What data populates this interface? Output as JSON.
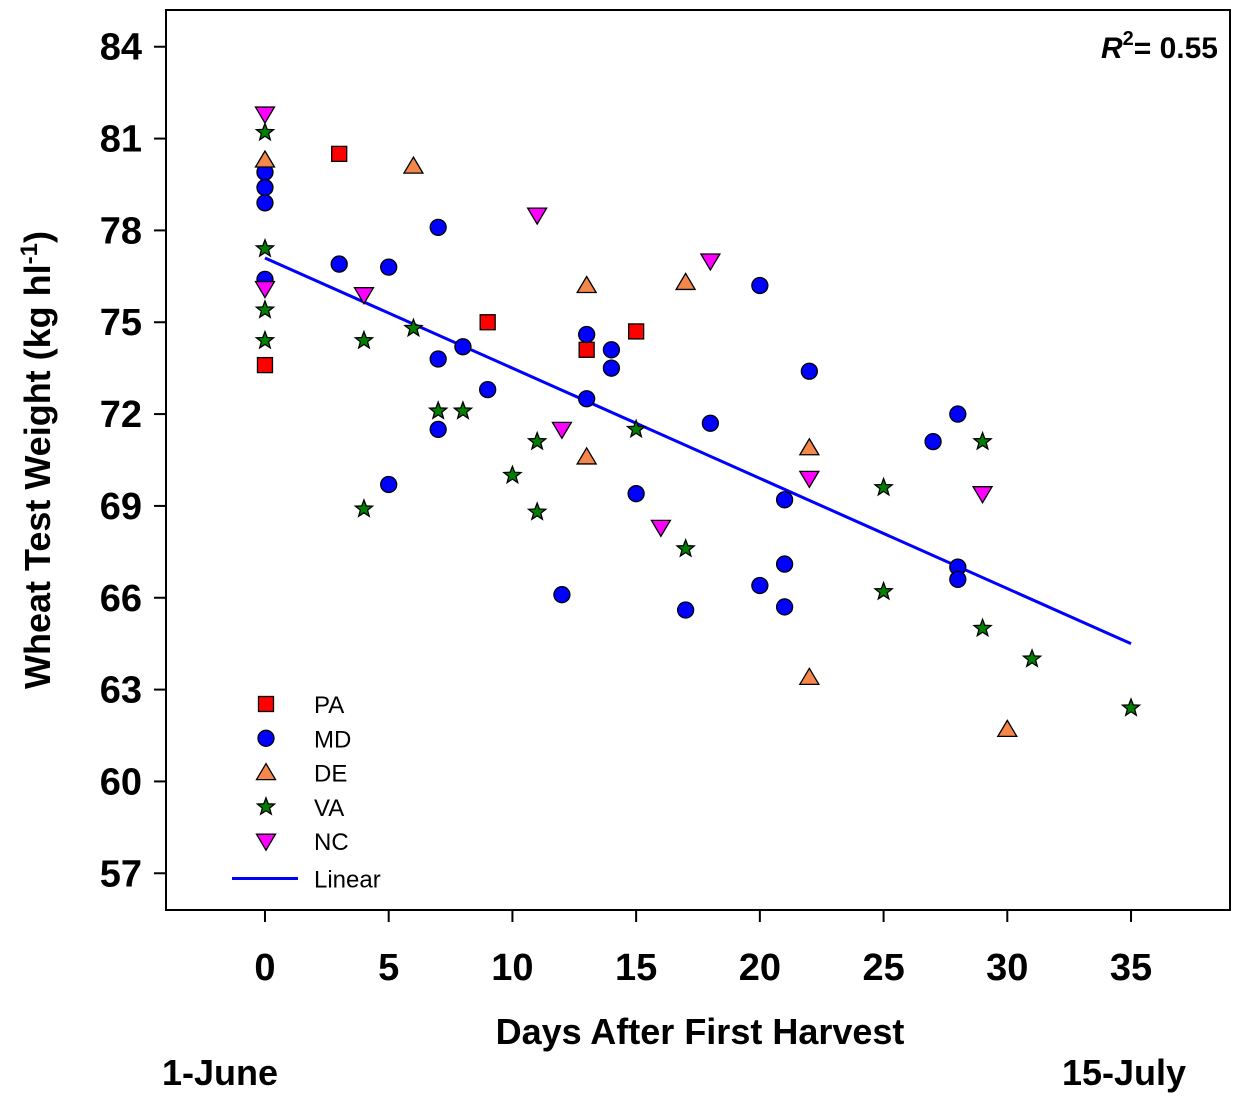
{
  "chart_data": {
    "type": "scatter",
    "xlabel": "Days After First Harvest",
    "ylabel_main": "Wheat Test Weight (kg hl",
    "ylabel_sup": "-1",
    "ylabel_end": ")",
    "xlim": [
      -4,
      39
    ],
    "ylim": [
      55.8,
      85.2
    ],
    "x_ticks": [
      0,
      5,
      10,
      15,
      20,
      25,
      30,
      35
    ],
    "y_ticks": [
      57,
      60,
      63,
      66,
      69,
      72,
      75,
      78,
      81,
      84
    ],
    "date_start": "1-June",
    "date_end": "15-July",
    "r2": {
      "label": "R",
      "sup": "2",
      "value": "= 0.55"
    },
    "legend_placement": "bottom-left",
    "series": [
      {
        "name": "PA",
        "marker": "square",
        "color": "#ff0000",
        "points": [
          [
            0,
            73.6
          ],
          [
            3,
            80.5
          ],
          [
            9,
            75.0
          ],
          [
            13,
            74.1
          ],
          [
            15,
            74.7
          ]
        ]
      },
      {
        "name": "MD",
        "marker": "circle",
        "color": "#0000ff",
        "points": [
          [
            0,
            79.9
          ],
          [
            0,
            79.4
          ],
          [
            0,
            78.9
          ],
          [
            0,
            76.4
          ],
          [
            3,
            76.9
          ],
          [
            5,
            76.8
          ],
          [
            5,
            69.7
          ],
          [
            7,
            78.1
          ],
          [
            7,
            73.8
          ],
          [
            7,
            71.5
          ],
          [
            8,
            74.2
          ],
          [
            9,
            72.8
          ],
          [
            12,
            66.1
          ],
          [
            13,
            74.6
          ],
          [
            13,
            72.5
          ],
          [
            14,
            74.1
          ],
          [
            14,
            73.5
          ],
          [
            15,
            69.4
          ],
          [
            17,
            65.6
          ],
          [
            18,
            71.7
          ],
          [
            20,
            76.2
          ],
          [
            20,
            66.4
          ],
          [
            21,
            69.2
          ],
          [
            21,
            67.1
          ],
          [
            21,
            65.7
          ],
          [
            22,
            73.4
          ],
          [
            27,
            71.1
          ],
          [
            28,
            72.0
          ],
          [
            28,
            67.0
          ],
          [
            28,
            66.6
          ]
        ]
      },
      {
        "name": "DE",
        "marker": "triangle-up",
        "color": "#f4874b",
        "points": [
          [
            0,
            80.3
          ],
          [
            6,
            80.1
          ],
          [
            13,
            76.2
          ],
          [
            13,
            70.6
          ],
          [
            17,
            76.3
          ],
          [
            22,
            70.9
          ],
          [
            22,
            63.4
          ],
          [
            30,
            61.7
          ]
        ]
      },
      {
        "name": "VA",
        "marker": "star",
        "color": "#008000",
        "points": [
          [
            0,
            81.2
          ],
          [
            0,
            77.4
          ],
          [
            0,
            75.4
          ],
          [
            0,
            74.4
          ],
          [
            4,
            74.4
          ],
          [
            4,
            68.9
          ],
          [
            6,
            74.8
          ],
          [
            7,
            72.1
          ],
          [
            8,
            72.1
          ],
          [
            10,
            70.0
          ],
          [
            11,
            71.1
          ],
          [
            11,
            68.8
          ],
          [
            15,
            71.5
          ],
          [
            17,
            67.6
          ],
          [
            25,
            69.6
          ],
          [
            25,
            66.2
          ],
          [
            29,
            71.1
          ],
          [
            29,
            65.0
          ],
          [
            31,
            64.0
          ],
          [
            35,
            62.4
          ]
        ]
      },
      {
        "name": "NC",
        "marker": "triangle-down",
        "color": "#ff00ff",
        "points": [
          [
            0,
            81.8
          ],
          [
            0,
            76.1
          ],
          [
            4,
            75.9
          ],
          [
            11,
            78.5
          ],
          [
            12,
            71.5
          ],
          [
            16,
            68.3
          ],
          [
            18,
            77.0
          ],
          [
            22,
            69.9
          ],
          [
            29,
            69.4
          ]
        ]
      }
    ],
    "fit": {
      "name": "Linear",
      "color": "#0000ff",
      "x": [
        0,
        35
      ],
      "y": [
        77.1,
        64.5
      ]
    }
  }
}
